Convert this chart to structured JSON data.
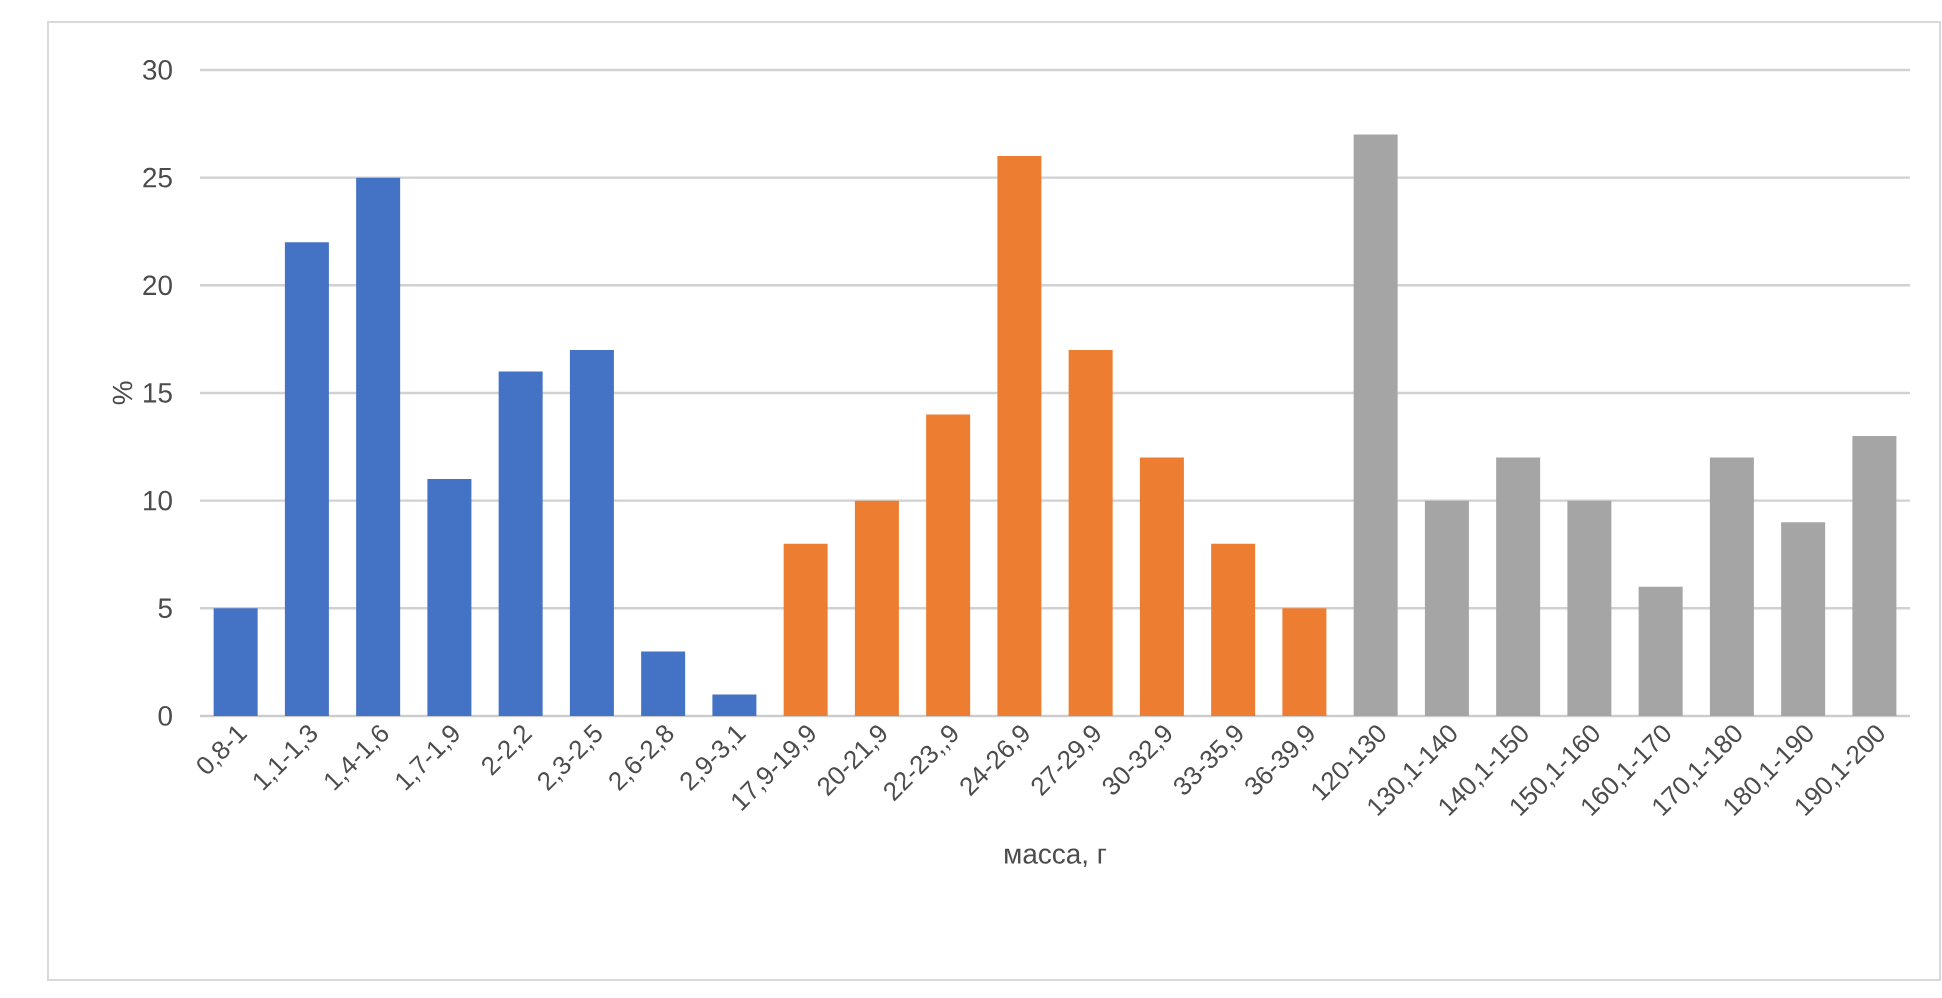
{
  "chart_data": {
    "type": "bar",
    "xlabel": "масса, г",
    "ylabel": "%",
    "categories": [
      "0,8-1",
      "1,1-1,3",
      "1,4-1,6",
      "1,7-1,9",
      "2-2,2",
      "2,3-2,5",
      "2,6-2,8",
      "2,9-3,1",
      "17,9-19,9",
      "20-21,9",
      "22-23,,9",
      "24-26,9",
      "27-29,9",
      "30-32,9",
      "33-35,9",
      "36-39,9",
      "120-130",
      "130,1-140",
      "140,1-150",
      "150,1-160",
      "160,1-170",
      "170,1-180",
      "180,1-190",
      "190,1-200"
    ],
    "values": [
      5,
      22,
      25,
      11,
      16,
      17,
      3,
      1,
      8,
      10,
      14,
      26,
      17,
      12,
      8,
      5,
      27,
      10,
      12,
      10,
      6,
      12,
      9,
      13
    ],
    "colors": [
      "#4472c4",
      "#4472c4",
      "#4472c4",
      "#4472c4",
      "#4472c4",
      "#4472c4",
      "#4472c4",
      "#4472c4",
      "#ed7d31",
      "#ed7d31",
      "#ed7d31",
      "#ed7d31",
      "#ed7d31",
      "#ed7d31",
      "#ed7d31",
      "#ed7d31",
      "#a5a5a5",
      "#a5a5a5",
      "#a5a5a5",
      "#a5a5a5",
      "#a5a5a5",
      "#a5a5a5",
      "#a5a5a5",
      "#a5a5a5"
    ],
    "ylim": [
      0,
      30
    ],
    "yticks": [
      0,
      5,
      10,
      15,
      20,
      25,
      30
    ],
    "grid": "y"
  }
}
